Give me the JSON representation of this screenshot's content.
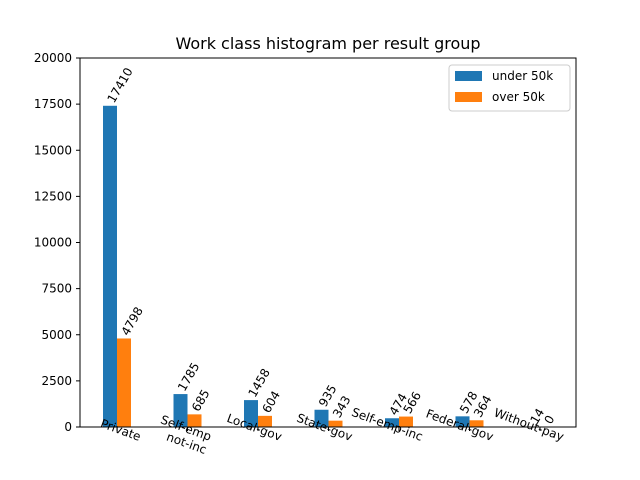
{
  "chart_data": {
    "type": "bar",
    "title": "Work class histogram per result group",
    "xlabel": "",
    "ylabel": "",
    "ylim": [
      0,
      20000
    ],
    "yticks": [
      0,
      2500,
      5000,
      7500,
      10000,
      12500,
      15000,
      17500,
      20000
    ],
    "categories": [
      "Private",
      "Self-emp\nnot-inc",
      "Local-gov",
      "State-gov",
      "Self-emp-inc",
      "Federal-gov",
      "Without-pay"
    ],
    "series": [
      {
        "name": "under 50k",
        "color": "#1f77b4",
        "values": [
          17410,
          1785,
          1458,
          935,
          474,
          578,
          14
        ]
      },
      {
        "name": "over 50k",
        "color": "#ff7f0e",
        "values": [
          4798,
          685,
          604,
          343,
          566,
          364,
          0
        ]
      }
    ],
    "legend": "top-right",
    "grid": false
  }
}
